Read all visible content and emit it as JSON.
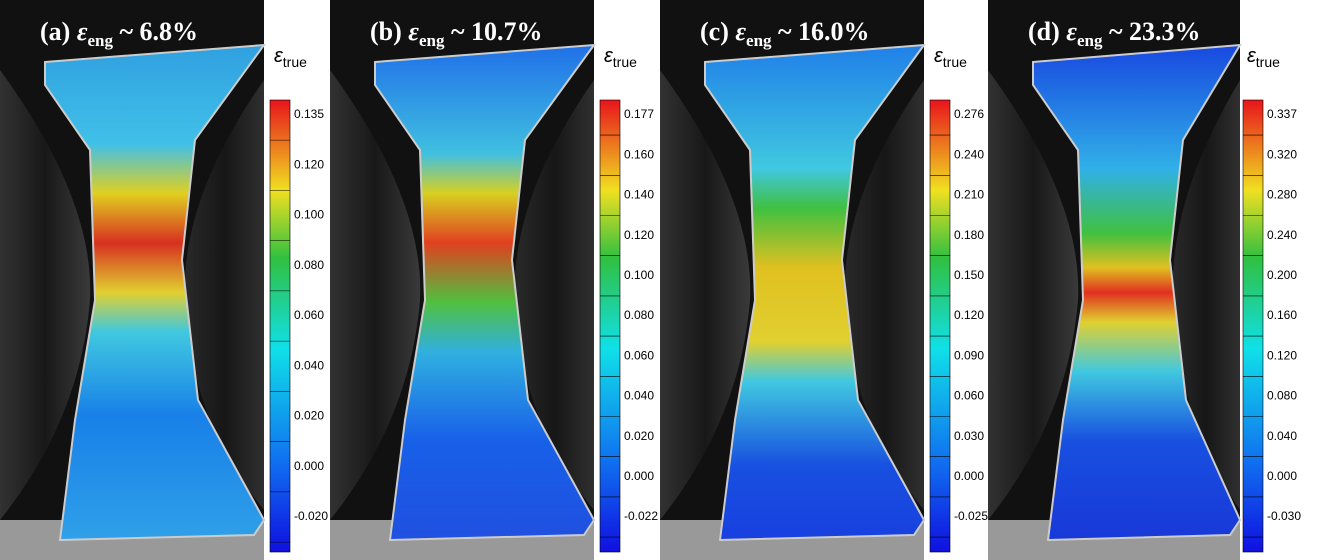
{
  "panels": [
    {
      "label": "(a)",
      "symbol": "ε",
      "subscript": "eng",
      "value": "~ 6.8%",
      "colorbar": {
        "symbol": "ε",
        "subscript": "true",
        "ticks": [
          "0.135",
          "0.120",
          "0.100",
          "0.080",
          "0.060",
          "0.040",
          "0.020",
          "0.000",
          "-0.020"
        ]
      }
    },
    {
      "label": "(b)",
      "symbol": "ε",
      "subscript": "eng",
      "value": "~ 10.7%",
      "colorbar": {
        "symbol": "ε",
        "subscript": "true",
        "ticks": [
          "0.177",
          "0.160",
          "0.140",
          "0.120",
          "0.100",
          "0.080",
          "0.060",
          "0.040",
          "0.020",
          "0.000",
          "-0.022"
        ]
      }
    },
    {
      "label": "(c)",
      "symbol": "ε",
      "subscript": "eng",
      "value": "~ 16.0%",
      "colorbar": {
        "symbol": "ε",
        "subscript": "true",
        "ticks": [
          "0.276",
          "0.240",
          "0.210",
          "0.180",
          "0.150",
          "0.120",
          "0.090",
          "0.060",
          "0.030",
          "0.000",
          "-0.025"
        ]
      }
    },
    {
      "label": "(d)",
      "symbol": "ε",
      "subscript": "eng",
      "value": "~ 23.3%",
      "colorbar": {
        "symbol": "ε",
        "subscript": "true",
        "ticks": [
          "0.337",
          "0.320",
          "0.280",
          "0.240",
          "0.200",
          "0.160",
          "0.120",
          "0.080",
          "0.040",
          "0.000",
          "-0.030"
        ]
      }
    }
  ]
}
